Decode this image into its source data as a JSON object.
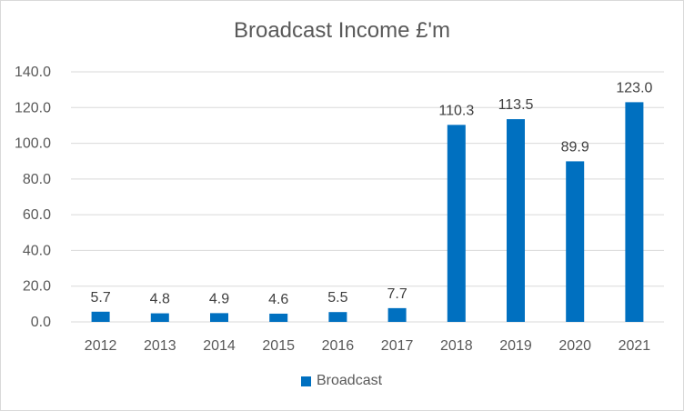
{
  "colors": {
    "bar": "#0070c0",
    "grid": "#d9d9d9",
    "text": "#595959"
  },
  "chart_data": {
    "type": "bar",
    "title": "Broadcast Income £'m",
    "categories": [
      "2012",
      "2013",
      "2014",
      "2015",
      "2016",
      "2017",
      "2018",
      "2019",
      "2020",
      "2021"
    ],
    "series": [
      {
        "name": "Broadcast",
        "values": [
          5.7,
          4.8,
          4.9,
          4.6,
          5.5,
          7.7,
          110.3,
          113.5,
          89.9,
          123.0
        ]
      }
    ],
    "data_labels": [
      "5.7",
      "4.8",
      "4.9",
      "4.6",
      "5.5",
      "7.7",
      "110.3",
      "113.5",
      "89.9",
      "123.0"
    ],
    "y_ticks": [
      "0.0",
      "20.0",
      "40.0",
      "60.0",
      "80.0",
      "100.0",
      "120.0",
      "140.0"
    ],
    "ylim": [
      0,
      140
    ],
    "grid": true,
    "legend_position": "bottom"
  }
}
